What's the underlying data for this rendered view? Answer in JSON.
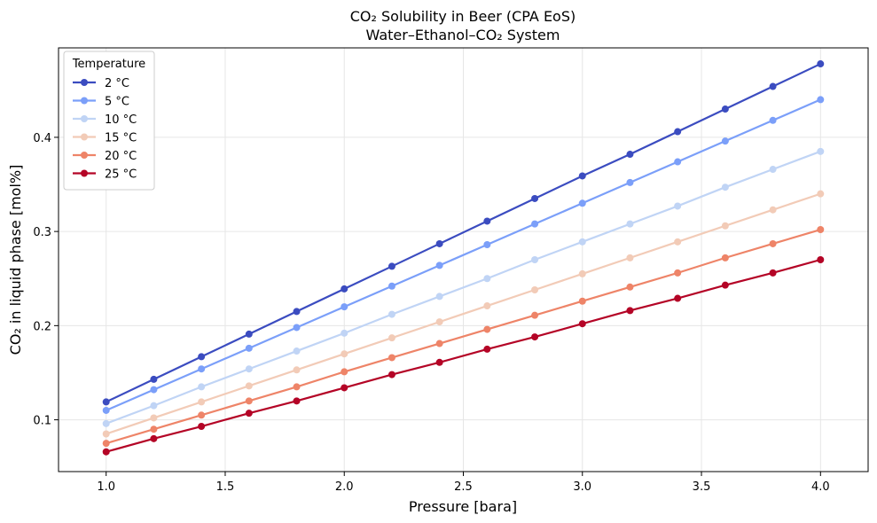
{
  "chart_data": {
    "type": "line",
    "title": "CO₂ Solubility in Beer (CPA EoS)",
    "subtitle": "Water–Ethanol–CO₂ System",
    "xlabel": "Pressure [bara]",
    "ylabel": "CO₂ in liquid phase [mol%]",
    "xlim": [
      0.8,
      4.2
    ],
    "ylim": [
      0.045,
      0.495
    ],
    "xticks": [
      1.0,
      1.5,
      2.0,
      2.5,
      3.0,
      3.5,
      4.0
    ],
    "xtick_labels": [
      "1.0",
      "1.5",
      "2.0",
      "2.5",
      "3.0",
      "3.5",
      "4.0"
    ],
    "yticks": [
      0.1,
      0.2,
      0.3,
      0.4
    ],
    "ytick_labels": [
      "0.1",
      "0.2",
      "0.3",
      "0.4"
    ],
    "grid": true,
    "legend_title": "Temperature",
    "legend_position": "top-left",
    "x": [
      1.0,
      1.2,
      1.4,
      1.6,
      1.8,
      2.0,
      2.2,
      2.4,
      2.6,
      2.8,
      3.0,
      3.2,
      3.4,
      3.6,
      3.8,
      4.0
    ],
    "series": [
      {
        "name": "2 °C",
        "color": "#3b4cc0",
        "values": [
          0.119,
          0.143,
          0.167,
          0.191,
          0.215,
          0.239,
          0.263,
          0.287,
          0.311,
          0.335,
          0.359,
          0.382,
          0.406,
          0.43,
          0.454,
          0.478
        ]
      },
      {
        "name": "5 °C",
        "color": "#7b9ff9",
        "values": [
          0.11,
          0.132,
          0.154,
          0.176,
          0.198,
          0.22,
          0.242,
          0.264,
          0.286,
          0.308,
          0.33,
          0.352,
          0.374,
          0.396,
          0.418,
          0.44
        ]
      },
      {
        "name": "10 °C",
        "color": "#c0d4f5",
        "values": [
          0.096,
          0.115,
          0.135,
          0.154,
          0.173,
          0.192,
          0.212,
          0.231,
          0.25,
          0.27,
          0.289,
          0.308,
          0.327,
          0.347,
          0.366,
          0.385
        ]
      },
      {
        "name": "15 °C",
        "color": "#f2cbb7",
        "values": [
          0.085,
          0.102,
          0.119,
          0.136,
          0.153,
          0.17,
          0.187,
          0.204,
          0.221,
          0.238,
          0.255,
          0.272,
          0.289,
          0.306,
          0.323,
          0.34
        ]
      },
      {
        "name": "20 °C",
        "color": "#ee8468",
        "values": [
          0.075,
          0.09,
          0.105,
          0.12,
          0.135,
          0.151,
          0.166,
          0.181,
          0.196,
          0.211,
          0.226,
          0.241,
          0.256,
          0.272,
          0.287,
          0.302
        ]
      },
      {
        "name": "25 °C",
        "color": "#b40426",
        "values": [
          0.066,
          0.08,
          0.093,
          0.107,
          0.12,
          0.134,
          0.148,
          0.161,
          0.175,
          0.188,
          0.202,
          0.216,
          0.229,
          0.243,
          0.256,
          0.27
        ]
      }
    ]
  }
}
